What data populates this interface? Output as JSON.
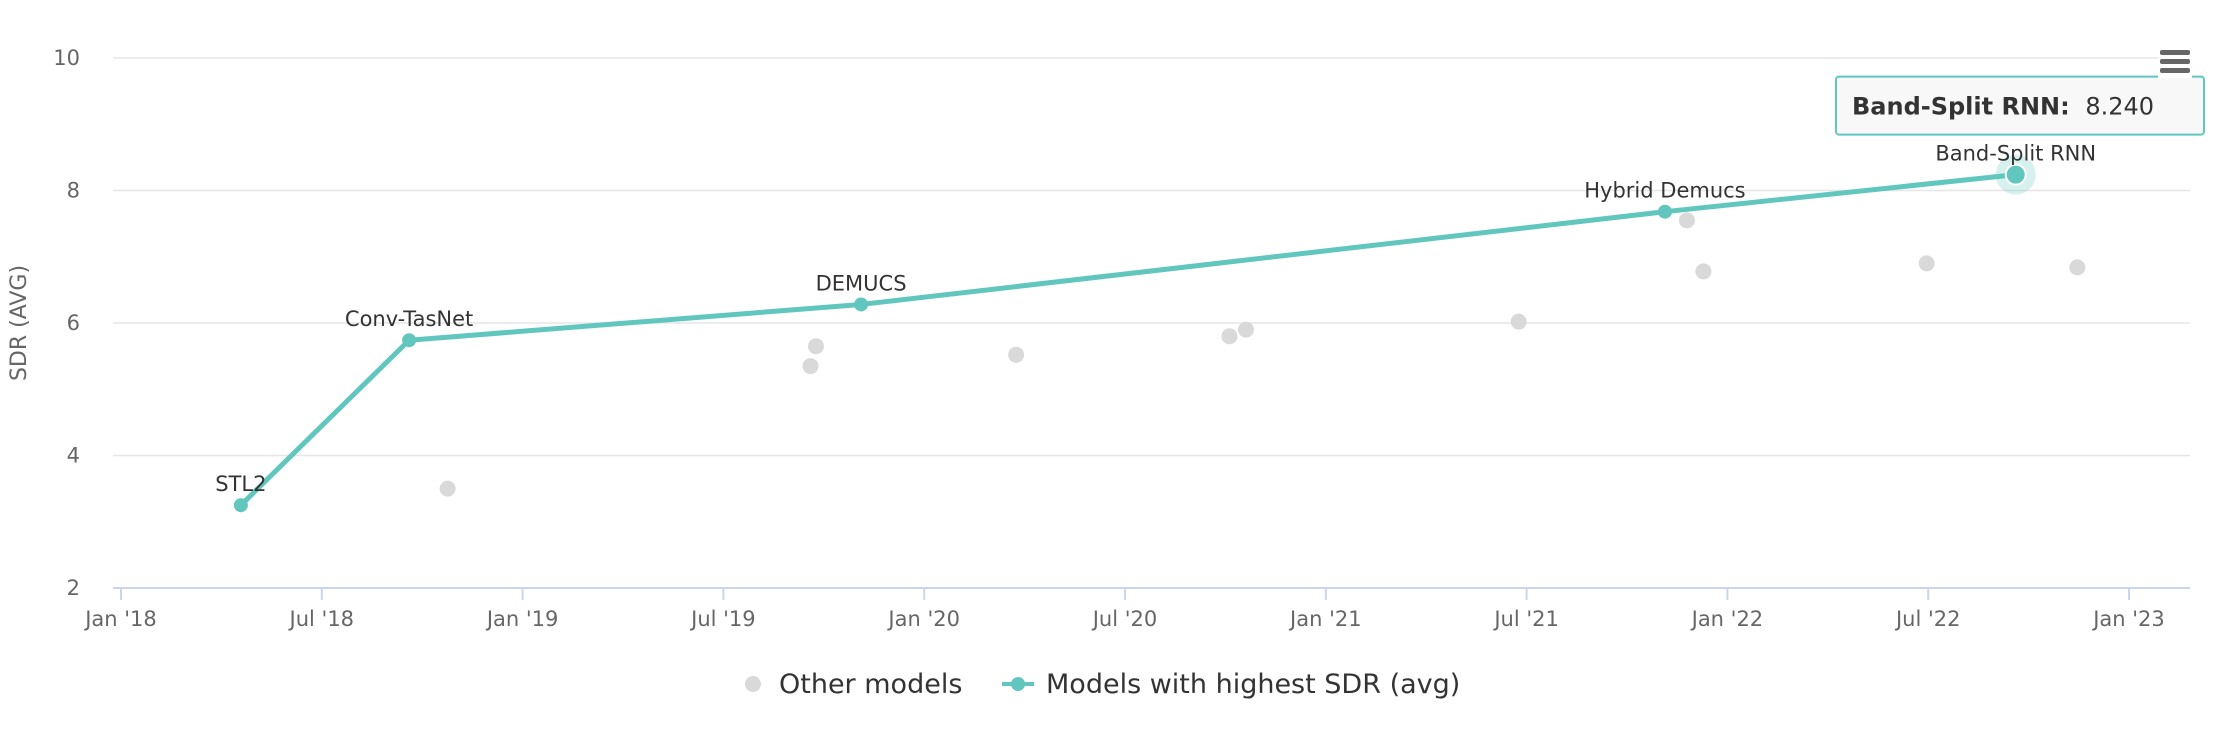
{
  "chart_data": {
    "type": "line",
    "ylabel": "SDR (AVG)",
    "ylim": [
      2,
      10
    ],
    "y_ticks": [
      "2",
      "4",
      "6",
      "8",
      "10"
    ],
    "x_ticks": [
      "Jan '18",
      "Jul '18",
      "Jan '19",
      "Jul '19",
      "Jan '20",
      "Jul '20",
      "Jan '21",
      "Jul '21",
      "Jan '22",
      "Jul '22",
      "Jan '23"
    ],
    "grid": "horizontal",
    "legend_position": "bottom-center",
    "series": [
      {
        "name": "Other models",
        "color": "#d9d9d9",
        "points": [
          {
            "x": "2018-10-25",
            "y": 3.5
          },
          {
            "x": "2019-09-20",
            "y": 5.35
          },
          {
            "x": "2019-09-25",
            "y": 5.65
          },
          {
            "x": "2020-03-25",
            "y": 5.52
          },
          {
            "x": "2020-10-05",
            "y": 5.8
          },
          {
            "x": "2020-10-20",
            "y": 5.9
          },
          {
            "x": "2021-06-25",
            "y": 6.02
          },
          {
            "x": "2021-11-25",
            "y": 7.55
          },
          {
            "x": "2021-12-10",
            "y": 6.78
          },
          {
            "x": "2022-07-01",
            "y": 6.9
          },
          {
            "x": "2022-11-15",
            "y": 6.84
          }
        ]
      },
      {
        "name": "Models with highest SDR (avg)",
        "color": "#61c7be",
        "points": [
          {
            "x": "2018-04-20",
            "y": 3.25,
            "label": "STL2"
          },
          {
            "x": "2018-09-20",
            "y": 5.74,
            "label": "Conv-TasNet"
          },
          {
            "x": "2019-11-05",
            "y": 6.28,
            "label": "DEMUCS"
          },
          {
            "x": "2021-11-05",
            "y": 7.68,
            "label": "Hybrid Demucs"
          },
          {
            "x": "2022-09-20",
            "y": 8.24,
            "label": "Band-Split RNN"
          }
        ]
      }
    ],
    "tooltip": {
      "name": "Band-Split RNN:",
      "value": "8.240"
    }
  },
  "menu_icon": "hamburger-menu-icon"
}
